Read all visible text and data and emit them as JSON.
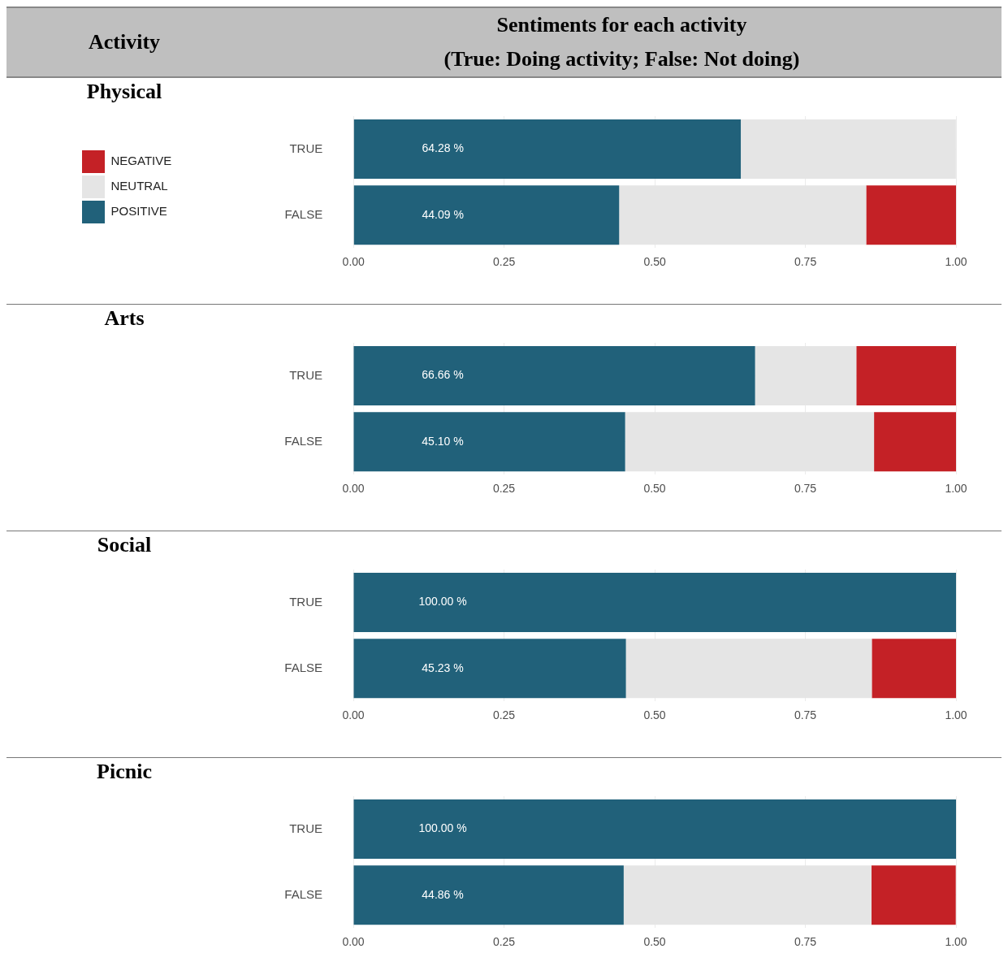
{
  "chart_data": [
    {
      "type": "other",
      "title": "Activity",
      "subtitle": "Sentiments for each activity",
      "annotations": [
        "(True: Doing activity; False: Not doing)"
      ]
    },
    {
      "type": "bar",
      "ylabel": "Physical",
      "orientation": "horizontal",
      "stacked": true,
      "categories": [
        "TRUE",
        "FALSE"
      ],
      "xlim": [
        0,
        1
      ],
      "xticks": [
        {
          "value": 0,
          "label": "0.00"
        },
        {
          "value": 0.25,
          "label": "0.25"
        },
        {
          "value": 0.5,
          "label": "0.50"
        },
        {
          "value": 0.75,
          "label": "0.75"
        },
        {
          "value": 1,
          "label": "1.00"
        }
      ],
      "grid": true,
      "legend": "left",
      "series": [
        {
          "name": "POSITIVE",
          "color": "#21617a",
          "values": [
            0.6428,
            0.4409
          ],
          "value_labels": [
            "64.28 %",
            "44.09 %"
          ]
        },
        {
          "name": "NEUTRAL",
          "color": "#e5e5e5",
          "values": [
            0.357,
            0.41
          ]
        },
        {
          "name": "NEGATIVE",
          "color": "#c42126",
          "values": [
            0,
            0.15
          ]
        }
      ]
    },
    {
      "type": "bar",
      "ylabel": "Arts",
      "orientation": "horizontal",
      "stacked": true,
      "categories": [
        "TRUE",
        "FALSE"
      ],
      "xlim": [
        0,
        1
      ],
      "xticks": [
        {
          "value": 0,
          "label": "0.00"
        },
        {
          "value": 0.25,
          "label": "0.25"
        },
        {
          "value": 0.5,
          "label": "0.50"
        },
        {
          "value": 0.75,
          "label": "0.75"
        },
        {
          "value": 1,
          "label": "1.00"
        }
      ],
      "grid": true,
      "series": [
        {
          "color": "#21617a",
          "values": [
            0.6666,
            0.451
          ],
          "value_labels": [
            "66.66 %",
            "45.10 %"
          ]
        },
        {
          "color": "#e5e5e5",
          "values": [
            0.168,
            0.413
          ]
        },
        {
          "color": "#c42126",
          "values": [
            0.166,
            0.136
          ]
        }
      ]
    },
    {
      "type": "bar",
      "ylabel": "Social",
      "orientation": "horizontal",
      "stacked": true,
      "categories": [
        "TRUE",
        "FALSE"
      ],
      "xlim": [
        0,
        1
      ],
      "xticks": [
        {
          "value": 0,
          "label": "0.00"
        },
        {
          "value": 0.25,
          "label": "0.25"
        },
        {
          "value": 0.5,
          "label": "0.50"
        },
        {
          "value": 0.75,
          "label": "0.75"
        },
        {
          "value": 1,
          "label": "1.00"
        }
      ],
      "grid": true,
      "series": [
        {
          "color": "#21617a",
          "values": [
            1,
            0.4523
          ],
          "value_labels": [
            "100.00 %",
            "45.23 %"
          ]
        },
        {
          "color": "#e5e5e5",
          "values": [
            0,
            0.408
          ]
        },
        {
          "color": "#c42126",
          "values": [
            0,
            0.14
          ]
        }
      ]
    },
    {
      "type": "bar",
      "ylabel": "Picnic",
      "orientation": "horizontal",
      "stacked": true,
      "categories": [
        "TRUE",
        "FALSE"
      ],
      "xlim": [
        0,
        1
      ],
      "xticks": [
        {
          "value": 0,
          "label": "0.00"
        },
        {
          "value": 0.25,
          "label": "0.25"
        },
        {
          "value": 0.5,
          "label": "0.50"
        },
        {
          "value": 0.75,
          "label": "0.75"
        },
        {
          "value": 1,
          "label": "1.00"
        }
      ],
      "grid": true,
      "series": [
        {
          "color": "#21617a",
          "values": [
            1,
            0.4486
          ],
          "value_labels": [
            "100.00 %",
            "44.86 %"
          ]
        },
        {
          "color": "#e5e5e5",
          "values": [
            0,
            0.411
          ]
        },
        {
          "color": "#c42126",
          "values": [
            0,
            0.14
          ]
        }
      ]
    }
  ]
}
